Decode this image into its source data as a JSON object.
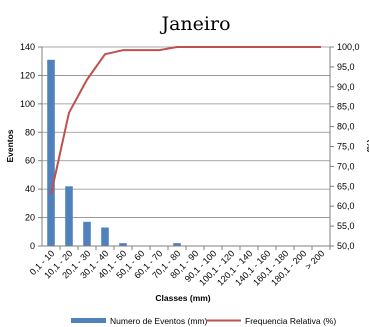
{
  "chart_data": {
    "type": "bar",
    "title": "Janeiro",
    "xlabel": "Classes (mm)",
    "ylabel": "Eventos",
    "y2label": "(%)",
    "categories": [
      "0,1 - 10",
      "10,1 - 20",
      "20,1 - 30",
      "30,1 - 40",
      "40,1 - 50",
      "50,1 - 60",
      "60,1 - 70",
      "70,1 - 80",
      "80,1 - 90",
      "90,1 - 100",
      "100,1 - 120",
      "120,1 - 140",
      "140,1 - 160",
      "160,1 - 180",
      "180,1 - 200",
      "> 200"
    ],
    "series": [
      {
        "name": "Numero de Eventos (mm)",
        "type": "bar",
        "axis": "left",
        "color": "#4f81bd",
        "values": [
          131,
          42,
          17,
          13,
          2,
          0,
          0,
          2,
          0,
          0,
          0,
          0,
          0,
          0,
          0,
          0
        ]
      },
      {
        "name": "Frequencia Relativa (%)",
        "type": "line",
        "axis": "right",
        "color": "#c0504d",
        "values": [
          63.0,
          83.5,
          91.8,
          98.2,
          99.2,
          99.2,
          99.2,
          100.0,
          100.0,
          100.0,
          100.0,
          100.0,
          100.0,
          100.0,
          100.0,
          100.0
        ]
      }
    ],
    "ylim": [
      0,
      140
    ],
    "yticks": [
      0,
      20,
      40,
      60,
      80,
      100,
      120,
      140
    ],
    "y2lim": [
      50,
      100
    ],
    "y2ticks": [
      "50,0",
      "55,0",
      "60,0",
      "65,0",
      "70,0",
      "75,0",
      "80,0",
      "85,0",
      "90,0",
      "95,0",
      "100,0"
    ],
    "grid": true,
    "legend": "bottom"
  }
}
